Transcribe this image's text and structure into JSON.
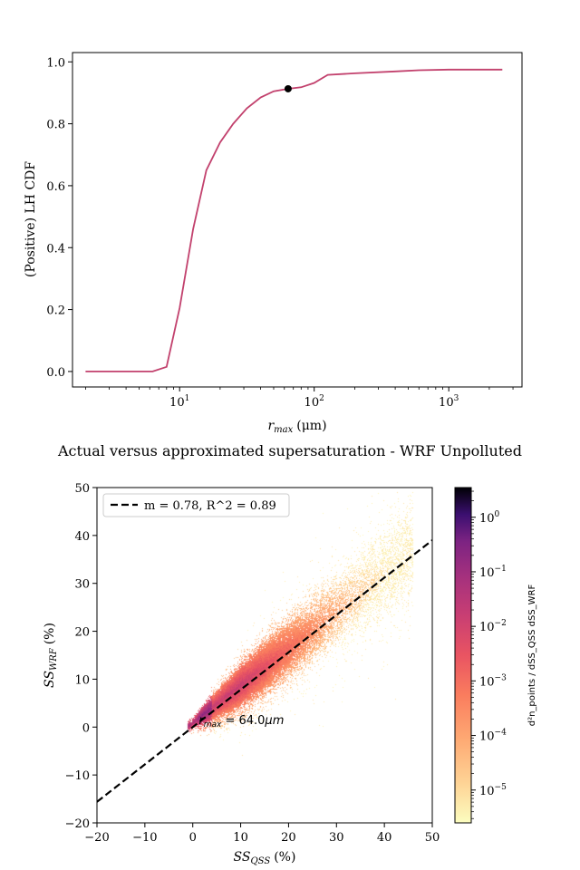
{
  "chart_data": [
    {
      "type": "line",
      "title": "",
      "xlabel_main": "r",
      "xlabel_sub": "max",
      "xlabel_unit": "(μm)",
      "ylabel": "(Positive) LH CDF",
      "xscale": "log",
      "xlim": [
        1.6,
        3500
      ],
      "ylim": [
        -0.05,
        1.03
      ],
      "xticks": [
        10,
        100,
        1000
      ],
      "xtick_labels": [
        "10",
        "10",
        "10"
      ],
      "xtick_exps": [
        "1",
        "2",
        "3"
      ],
      "yticks": [
        0.0,
        0.2,
        0.4,
        0.6,
        0.8,
        1.0
      ],
      "ytick_labels": [
        "0.0",
        "0.2",
        "0.4",
        "0.6",
        "0.8",
        "1.0"
      ],
      "grid": false,
      "line_color": "#c2416d",
      "x": [
        2,
        4,
        6.3,
        8,
        10,
        12.6,
        15.8,
        20,
        25,
        31.6,
        40,
        50,
        64,
        80,
        100,
        126,
        200,
        400,
        600,
        1000,
        2500
      ],
      "y": [
        0.0,
        0.0,
        0.0,
        0.015,
        0.205,
        0.46,
        0.65,
        0.74,
        0.8,
        0.85,
        0.885,
        0.905,
        0.913,
        0.918,
        0.932,
        0.958,
        0.963,
        0.969,
        0.973,
        0.975,
        0.975
      ],
      "marker": {
        "x": 64,
        "y": 0.913,
        "color": "#000000"
      }
    },
    {
      "type": "heatmap",
      "title": "Actual versus approximated supersaturation - WRF Unpolluted",
      "xlabel_main": "SS",
      "xlabel_sub": "QSS",
      "xlabel_unit": "(%)",
      "ylabel_main": "SS",
      "ylabel_sub": "WRF",
      "ylabel_unit": "(%)",
      "xlim": [
        -20,
        50
      ],
      "ylim": [
        -20,
        50
      ],
      "xticks": [
        -20,
        -10,
        0,
        10,
        20,
        30,
        40,
        50
      ],
      "xtick_labels": [
        "−20",
        "−10",
        "0",
        "10",
        "20",
        "30",
        "40",
        "50"
      ],
      "yticks": [
        -20,
        -10,
        0,
        10,
        20,
        30,
        40,
        50
      ],
      "ytick_labels": [
        "−20",
        "−10",
        "0",
        "10",
        "20",
        "30",
        "40",
        "50"
      ],
      "grid": false,
      "fit_line": {
        "slope": 0.78,
        "intercept": 0.0,
        "color": "#000000",
        "style": "dashed"
      },
      "legend": {
        "label": "m = 0.78, R^2 = 0.89",
        "placement": "upper-left"
      },
      "annotation": {
        "main": "r",
        "sub": "max",
        "rest": " = 64.0",
        "unit": "μm",
        "x": 0.5,
        "y": 0.8
      },
      "colormap": "magma_r",
      "colorbar": {
        "scale": "log",
        "range": [
          2.5e-06,
          3.5
        ],
        "ticks": [
          1e-05,
          0.0001,
          0.001,
          0.01,
          0.1,
          1
        ],
        "tick_labels": [
          "10",
          "10",
          "10",
          "10",
          "10",
          "10"
        ],
        "tick_exps": [
          "−5",
          "−4",
          "−3",
          "−2",
          "−1",
          "0"
        ],
        "label": "d²n_points / dSS_QSS dSS_WRF"
      },
      "density_model": {
        "x_range": [
          -1,
          46
        ],
        "y_over_x_ratio": 0.78,
        "spread_pct_of_x": 0.22
      }
    }
  ]
}
